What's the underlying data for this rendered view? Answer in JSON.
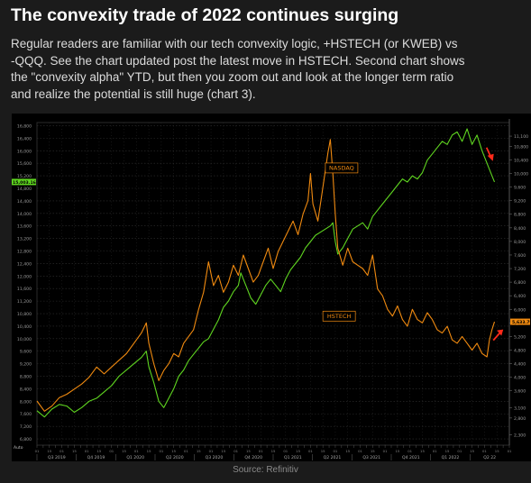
{
  "article": {
    "title": "The convexity trade of 2022 continues surging",
    "paragraph_lines": [
      "Regular readers are familiar with our tech convexity logic, +HSTECH (or KWEB) vs",
      "-QQQ. See the chart updated post the latest move in HSTECH. Second chart shows",
      "the \"convexity alpha\" YTD, but then you zoom out and look at the longer term ratio",
      "and realize the potential is still huge (chart 3)."
    ],
    "source": "Source: Refinitiv"
  },
  "chart_data": {
    "type": "line",
    "title": "",
    "xlabel": "",
    "ylabel": "",
    "x_periods": [
      "Q3 2019",
      "Q4 2019",
      "Q1 2020",
      "Q2 2020",
      "Q3 2020",
      "Q4 2020",
      "Q1 2021",
      "Q2 2021",
      "Q3 2021",
      "Q4 2021",
      "Q1 2022",
      "Q2 22"
    ],
    "left_axis": {
      "series": "NASDAQ",
      "ylim": [
        6600,
        16900
      ],
      "ticks": [
        "6,800",
        "7,200",
        "7,600",
        "8,000",
        "8,400",
        "8,800",
        "9,200",
        "9,600",
        "10,000",
        "10,400",
        "10,800",
        "11,200",
        "11,600",
        "12,000",
        "12,400",
        "12,800",
        "13,200",
        "13,600",
        "14,000",
        "14,400",
        "14,800",
        "15,200",
        "15,600",
        "16,000",
        "16,400",
        "16,800"
      ]
    },
    "right_axis": {
      "series": "HSTECH",
      "ylim": [
        2000,
        11500
      ],
      "ticks": [
        "2,300",
        "2,800",
        "3,100",
        "3,600",
        "4,000",
        "4,400",
        "4,800",
        "5,200",
        "5,600",
        "6,000",
        "6,400",
        "6,800",
        "7,200",
        "7,600",
        "8,000",
        "8,400",
        "8,800",
        "9,200",
        "9,600",
        "10,000",
        "10,400",
        "10,800",
        "11,100"
      ]
    },
    "current_values": {
      "left": "15,003.16",
      "right": "5,633.79"
    },
    "grid": true,
    "series": [
      {
        "name": "NASDAQ",
        "color": "#5fd520",
        "axis": "left",
        "points": [
          [
            0,
            7700
          ],
          [
            3,
            7500
          ],
          [
            6,
            7750
          ],
          [
            9,
            7900
          ],
          [
            12,
            7850
          ],
          [
            15,
            7650
          ],
          [
            18,
            7800
          ],
          [
            21,
            8000
          ],
          [
            24,
            8100
          ],
          [
            27,
            8300
          ],
          [
            30,
            8500
          ],
          [
            33,
            8800
          ],
          [
            36,
            9000
          ],
          [
            39,
            9200
          ],
          [
            42,
            9400
          ],
          [
            44,
            9600
          ],
          [
            45,
            9100
          ],
          [
            47,
            8600
          ],
          [
            49,
            8000
          ],
          [
            51,
            7800
          ],
          [
            53,
            8100
          ],
          [
            55,
            8400
          ],
          [
            57,
            8800
          ],
          [
            59,
            9000
          ],
          [
            61,
            9300
          ],
          [
            63,
            9500
          ],
          [
            65,
            9700
          ],
          [
            67,
            9900
          ],
          [
            69,
            10000
          ],
          [
            71,
            10300
          ],
          [
            73,
            10600
          ],
          [
            75,
            11000
          ],
          [
            77,
            11200
          ],
          [
            79,
            11500
          ],
          [
            81,
            11700
          ],
          [
            82,
            12100
          ],
          [
            84,
            11700
          ],
          [
            86,
            11300
          ],
          [
            88,
            11100
          ],
          [
            90,
            11400
          ],
          [
            92,
            11700
          ],
          [
            94,
            11900
          ],
          [
            96,
            11700
          ],
          [
            98,
            11500
          ],
          [
            100,
            11900
          ],
          [
            102,
            12200
          ],
          [
            104,
            12400
          ],
          [
            106,
            12600
          ],
          [
            108,
            12900
          ],
          [
            110,
            13100
          ],
          [
            112,
            13300
          ],
          [
            114,
            13400
          ],
          [
            116,
            13500
          ],
          [
            118,
            13600
          ],
          [
            119,
            13700
          ],
          [
            120,
            13100
          ],
          [
            121,
            12700
          ],
          [
            123,
            12900
          ],
          [
            125,
            13200
          ],
          [
            127,
            13500
          ],
          [
            129,
            13600
          ],
          [
            131,
            13700
          ],
          [
            133,
            13500
          ],
          [
            135,
            13900
          ],
          [
            137,
            14100
          ],
          [
            139,
            14300
          ],
          [
            141,
            14500
          ],
          [
            143,
            14700
          ],
          [
            145,
            14900
          ],
          [
            147,
            15100
          ],
          [
            149,
            15000
          ],
          [
            151,
            15200
          ],
          [
            153,
            15100
          ],
          [
            155,
            15300
          ],
          [
            157,
            15700
          ],
          [
            159,
            15900
          ],
          [
            161,
            16100
          ],
          [
            163,
            16300
          ],
          [
            165,
            16200
          ],
          [
            167,
            16500
          ],
          [
            169,
            16600
          ],
          [
            171,
            16300
          ],
          [
            173,
            16700
          ],
          [
            175,
            16200
          ],
          [
            177,
            16500
          ],
          [
            179,
            16000
          ],
          [
            181,
            15600
          ],
          [
            183,
            15200
          ],
          [
            184,
            15003
          ]
        ]
      },
      {
        "name": "HSTECH",
        "color": "#f08a10",
        "axis": "right",
        "points": [
          [
            0,
            3300
          ],
          [
            3,
            3000
          ],
          [
            6,
            3150
          ],
          [
            9,
            3400
          ],
          [
            12,
            3500
          ],
          [
            15,
            3650
          ],
          [
            18,
            3800
          ],
          [
            21,
            4000
          ],
          [
            24,
            4300
          ],
          [
            27,
            4100
          ],
          [
            30,
            4300
          ],
          [
            33,
            4500
          ],
          [
            36,
            4700
          ],
          [
            39,
            5000
          ],
          [
            42,
            5300
          ],
          [
            44,
            5600
          ],
          [
            45,
            5000
          ],
          [
            47,
            4400
          ],
          [
            49,
            3900
          ],
          [
            51,
            4200
          ],
          [
            53,
            4400
          ],
          [
            55,
            4700
          ],
          [
            57,
            4600
          ],
          [
            59,
            5000
          ],
          [
            61,
            5200
          ],
          [
            63,
            5400
          ],
          [
            65,
            6000
          ],
          [
            67,
            6500
          ],
          [
            69,
            7400
          ],
          [
            71,
            6700
          ],
          [
            73,
            7000
          ],
          [
            75,
            6500
          ],
          [
            77,
            6800
          ],
          [
            79,
            7300
          ],
          [
            81,
            7000
          ],
          [
            83,
            7600
          ],
          [
            85,
            7200
          ],
          [
            87,
            6800
          ],
          [
            89,
            7000
          ],
          [
            91,
            7400
          ],
          [
            93,
            7800
          ],
          [
            95,
            7200
          ],
          [
            97,
            7700
          ],
          [
            99,
            8000
          ],
          [
            101,
            8300
          ],
          [
            103,
            8600
          ],
          [
            105,
            8200
          ],
          [
            107,
            8800
          ],
          [
            109,
            9200
          ],
          [
            110,
            10000
          ],
          [
            111,
            9100
          ],
          [
            113,
            8600
          ],
          [
            115,
            9600
          ],
          [
            117,
            10600
          ],
          [
            118,
            11000
          ],
          [
            119,
            10000
          ],
          [
            120,
            8800
          ],
          [
            121,
            7800
          ],
          [
            123,
            7300
          ],
          [
            125,
            7800
          ],
          [
            127,
            7400
          ],
          [
            129,
            7300
          ],
          [
            131,
            7200
          ],
          [
            133,
            7000
          ],
          [
            135,
            7600
          ],
          [
            137,
            6600
          ],
          [
            139,
            6400
          ],
          [
            141,
            6000
          ],
          [
            143,
            5800
          ],
          [
            145,
            6100
          ],
          [
            147,
            5700
          ],
          [
            149,
            5500
          ],
          [
            151,
            6000
          ],
          [
            153,
            5700
          ],
          [
            155,
            5600
          ],
          [
            157,
            5900
          ],
          [
            159,
            5700
          ],
          [
            161,
            5400
          ],
          [
            163,
            5300
          ],
          [
            165,
            5500
          ],
          [
            167,
            5100
          ],
          [
            169,
            5000
          ],
          [
            171,
            5200
          ],
          [
            173,
            5000
          ],
          [
            175,
            4800
          ],
          [
            177,
            5000
          ],
          [
            179,
            4700
          ],
          [
            181,
            4600
          ],
          [
            182,
            5100
          ],
          [
            183,
            5400
          ],
          [
            184,
            5634
          ]
        ]
      }
    ],
    "annotations": [
      {
        "text": "NASDAQ",
        "color": "#f08a10"
      },
      {
        "text": "HSTECH",
        "color": "#f08a10"
      }
    ],
    "arrows_color": "#ff2a1a",
    "corner_label": "Auto"
  }
}
